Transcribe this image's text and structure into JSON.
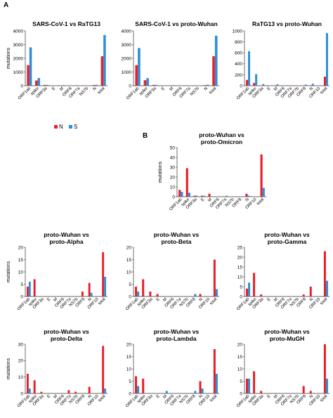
{
  "panel_labels": {
    "a": "A",
    "b": "B"
  },
  "legend": {
    "n_label": "N",
    "n_color": "#e8212a",
    "s_label": "S",
    "s_color": "#2e8fd8"
  },
  "chart_data": [
    {
      "id": "a1",
      "type": "bar",
      "title": [
        "SARS-CoV-1 vs RaTG13"
      ],
      "ylabel": "mutations",
      "ylim": [
        0,
        4000
      ],
      "yticks": [
        0,
        1000,
        2000,
        3000,
        4000
      ],
      "categories": [
        "ORF1ab",
        "spike",
        "ORF3a",
        "E",
        "M",
        "ORF6",
        "ORF7a",
        "NS7b",
        "N",
        "total"
      ],
      "series": [
        {
          "name": "N",
          "values": [
            1500,
            380,
            60,
            4,
            20,
            8,
            12,
            4,
            50,
            2150
          ]
        },
        {
          "name": "S",
          "values": [
            2800,
            560,
            60,
            6,
            40,
            12,
            20,
            4,
            70,
            3700
          ]
        }
      ]
    },
    {
      "id": "a2",
      "type": "bar",
      "title": [
        "SARS-CoV-1 vs proto-Wuhan"
      ],
      "ylabel": "",
      "ylim": [
        0,
        4000
      ],
      "yticks": [
        0,
        1000,
        2000,
        3000,
        4000
      ],
      "categories": [
        "ORF1ab",
        "spike",
        "ORF3a",
        "E",
        "M",
        "ORF6",
        "ORF7a",
        "NS7b",
        "N",
        "total"
      ],
      "series": [
        {
          "name": "N",
          "values": [
            1500,
            400,
            60,
            4,
            20,
            8,
            12,
            4,
            40,
            2150
          ]
        },
        {
          "name": "S",
          "values": [
            2750,
            550,
            60,
            6,
            40,
            12,
            20,
            4,
            70,
            3650
          ]
        }
      ]
    },
    {
      "id": "a3",
      "type": "bar",
      "title": [
        "RaTG13 vs proto-Wuhan"
      ],
      "ylabel": "",
      "ylim": [
        0,
        1000
      ],
      "yticks": [
        0,
        200,
        400,
        600,
        800,
        1000
      ],
      "categories": [
        "ORF1ab",
        "spike",
        "ORF3a",
        "E",
        "M",
        "ORF6",
        "ORF7a",
        "ORF7b",
        "ORF8",
        "N",
        "ORF10",
        "total"
      ],
      "series": [
        {
          "name": "N",
          "values": [
            105,
            50,
            4,
            1,
            4,
            1,
            2,
            1,
            4,
            8,
            0,
            165
          ]
        },
        {
          "name": "S",
          "values": [
            630,
            210,
            30,
            6,
            25,
            5,
            8,
            2,
            20,
            35,
            0,
            960
          ]
        }
      ]
    },
    {
      "id": "b0",
      "type": "bar",
      "title": [
        "proto-Wuhan vs",
        "proto-Omicron"
      ],
      "ylabel": "mutations",
      "ylim": [
        0,
        50
      ],
      "yticks": [
        0,
        10,
        20,
        30,
        40,
        50
      ],
      "categories": [
        "ORF1ab",
        "spike",
        "ORF3a",
        "E",
        "M",
        "ORF6",
        "ORF7a",
        "NS7b",
        "ORF8",
        "N",
        "ORF10",
        "total"
      ],
      "series": [
        {
          "name": "N",
          "values": [
            7,
            29,
            1,
            1,
            3,
            0,
            0,
            0,
            0,
            3,
            0,
            43
          ]
        },
        {
          "name": "S",
          "values": [
            5,
            4,
            1,
            1,
            0,
            0,
            1,
            0,
            0,
            1,
            0,
            9
          ]
        }
      ]
    },
    {
      "id": "b1",
      "type": "bar",
      "title": [
        "proto-Wuhan vs",
        "proto-Alpha"
      ],
      "ylabel": "mutations",
      "ylim": [
        0,
        20
      ],
      "yticks": [
        0,
        5,
        10,
        15,
        20
      ],
      "categories": [
        "ORF1ab",
        "spike",
        "ORF3a",
        "E",
        "M",
        "ORF6",
        "ORF7a",
        "NS7b",
        "ORF8",
        "N",
        "ORF10",
        "total"
      ],
      "series": [
        {
          "name": "N",
          "values": [
            4,
            7,
            0,
            0,
            0,
            0,
            0,
            0,
            2,
            5.5,
            0,
            18
          ]
        },
        {
          "name": "S",
          "values": [
            6,
            0,
            0,
            0,
            0,
            0,
            0,
            0,
            0,
            1.5,
            0,
            8
          ]
        }
      ]
    },
    {
      "id": "b2",
      "type": "bar",
      "title": [
        "proto-Wuhan vs",
        "proto-Beta"
      ],
      "ylabel": "",
      "ylim": [
        0,
        20
      ],
      "yticks": [
        0,
        5,
        10,
        15,
        20
      ],
      "categories": [
        "ORF1ab",
        "spike",
        "ORF3a",
        "E",
        "M",
        "ORF6",
        "ORF7a",
        "NS7b",
        "ORF8",
        "N",
        "ORF10",
        "total"
      ],
      "series": [
        {
          "name": "N",
          "values": [
            4,
            7,
            2,
            1,
            0,
            0,
            0,
            0,
            0,
            1,
            0,
            15
          ]
        },
        {
          "name": "S",
          "values": [
            2,
            0,
            0,
            0,
            0,
            0,
            0,
            0,
            1,
            0,
            0,
            3
          ]
        }
      ]
    },
    {
      "id": "b3",
      "type": "bar",
      "title": [
        "proto-Wuhan vs",
        "proto-Gamma"
      ],
      "ylabel": "",
      "ylim": [
        0,
        25
      ],
      "yticks": [
        0,
        5,
        10,
        15,
        20,
        25
      ],
      "categories": [
        "ORF1ab",
        "spike",
        "ORF3a",
        "E",
        "M",
        "ORF6",
        "ORF7a",
        "NS7b",
        "ORF8",
        "N",
        "ORF10",
        "total"
      ],
      "series": [
        {
          "name": "N",
          "values": [
            4,
            12,
            1,
            0,
            0,
            0,
            0,
            0,
            1,
            5,
            0,
            23
          ]
        },
        {
          "name": "S",
          "values": [
            7,
            0,
            0,
            0,
            0,
            0,
            0,
            0,
            0,
            0,
            0,
            8
          ]
        }
      ]
    },
    {
      "id": "b4",
      "type": "bar",
      "title": [
        "proto-Wuhan vs",
        "proto-Delta"
      ],
      "ylabel": "mutations",
      "ylim": [
        0,
        30
      ],
      "yticks": [
        0,
        10,
        20,
        30
      ],
      "categories": [
        "ORF1ab",
        "spike",
        "ORF3a",
        "E",
        "M",
        "ORF6",
        "ORF7a",
        "NS7b",
        "ORF8",
        "N",
        "ORF10",
        "total"
      ],
      "series": [
        {
          "name": "N",
          "values": [
            12,
            8,
            1,
            0,
            0,
            0,
            2,
            1,
            0,
            4,
            0,
            29
          ]
        },
        {
          "name": "S",
          "values": [
            3,
            0,
            0,
            0,
            0,
            0,
            0,
            0,
            0,
            0,
            0,
            3
          ]
        }
      ]
    },
    {
      "id": "b5",
      "type": "bar",
      "title": [
        "proto-Wuhan vs",
        "proto-Lambda"
      ],
      "ylabel": "",
      "ylim": [
        0,
        20
      ],
      "yticks": [
        0,
        5,
        10,
        15,
        20
      ],
      "categories": [
        "ORF1ab",
        "spike",
        "ORF3a",
        "E",
        "M",
        "ORF6",
        "ORF7a",
        "NS7b",
        "ORF8",
        "N",
        "ORF10",
        "total"
      ],
      "series": [
        {
          "name": "N",
          "values": [
            7,
            6,
            0,
            0,
            0,
            0,
            0,
            0,
            0,
            5,
            0,
            18
          ]
        },
        {
          "name": "S",
          "values": [
            3,
            0,
            0,
            0,
            1,
            0,
            0,
            0,
            1,
            2,
            0,
            8
          ]
        }
      ]
    },
    {
      "id": "b6",
      "type": "bar",
      "title": [
        "proto-Wuhan vs",
        "proto-MuGH"
      ],
      "ylabel": "",
      "ylim": [
        0,
        20
      ],
      "yticks": [
        0,
        5,
        10,
        15,
        20
      ],
      "categories": [
        "ORF1ab",
        "spike",
        "ORF3a",
        "E",
        "M",
        "ORF6",
        "ORF7a",
        "NS7b",
        "ORF8",
        "N",
        "ORF10",
        "total"
      ],
      "series": [
        {
          "name": "N",
          "values": [
            6,
            9,
            1,
            0,
            0,
            0,
            0,
            0,
            3,
            1,
            0,
            20
          ]
        },
        {
          "name": "S",
          "values": [
            6,
            0,
            0,
            0,
            0,
            0,
            0,
            0,
            0,
            0,
            0,
            6
          ]
        }
      ]
    }
  ]
}
